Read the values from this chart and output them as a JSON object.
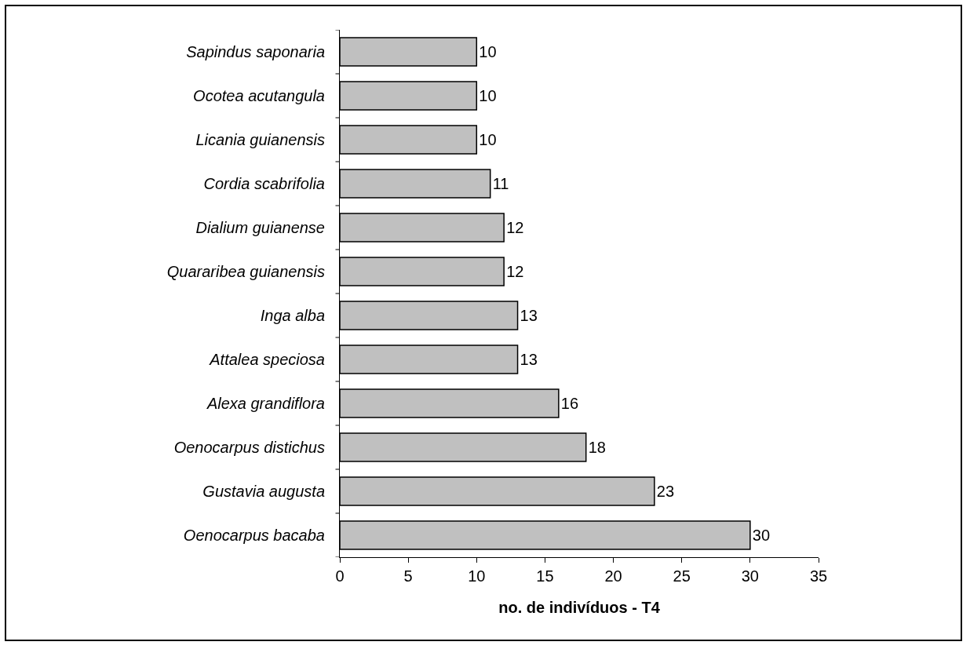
{
  "chart_data": {
    "type": "bar",
    "orientation": "horizontal",
    "categories": [
      "Sapindus saponaria",
      "Ocotea acutangula",
      "Licania guianensis",
      "Cordia scabrifolia",
      "Dialium guianense",
      "Quararibea guianensis",
      "Inga alba",
      "Attalea speciosa",
      "Alexa grandiflora",
      "Oenocarpus distichus",
      "Gustavia augusta",
      "Oenocarpus bacaba"
    ],
    "values": [
      10,
      10,
      10,
      11,
      12,
      12,
      13,
      13,
      16,
      18,
      23,
      30
    ],
    "color": "#c0c0c0",
    "xlabel": "no. de indivíduos - T4",
    "xlim": [
      0,
      35
    ],
    "xticks": [
      0,
      5,
      10,
      15,
      20,
      25,
      30,
      35
    ],
    "data_labels": true
  }
}
